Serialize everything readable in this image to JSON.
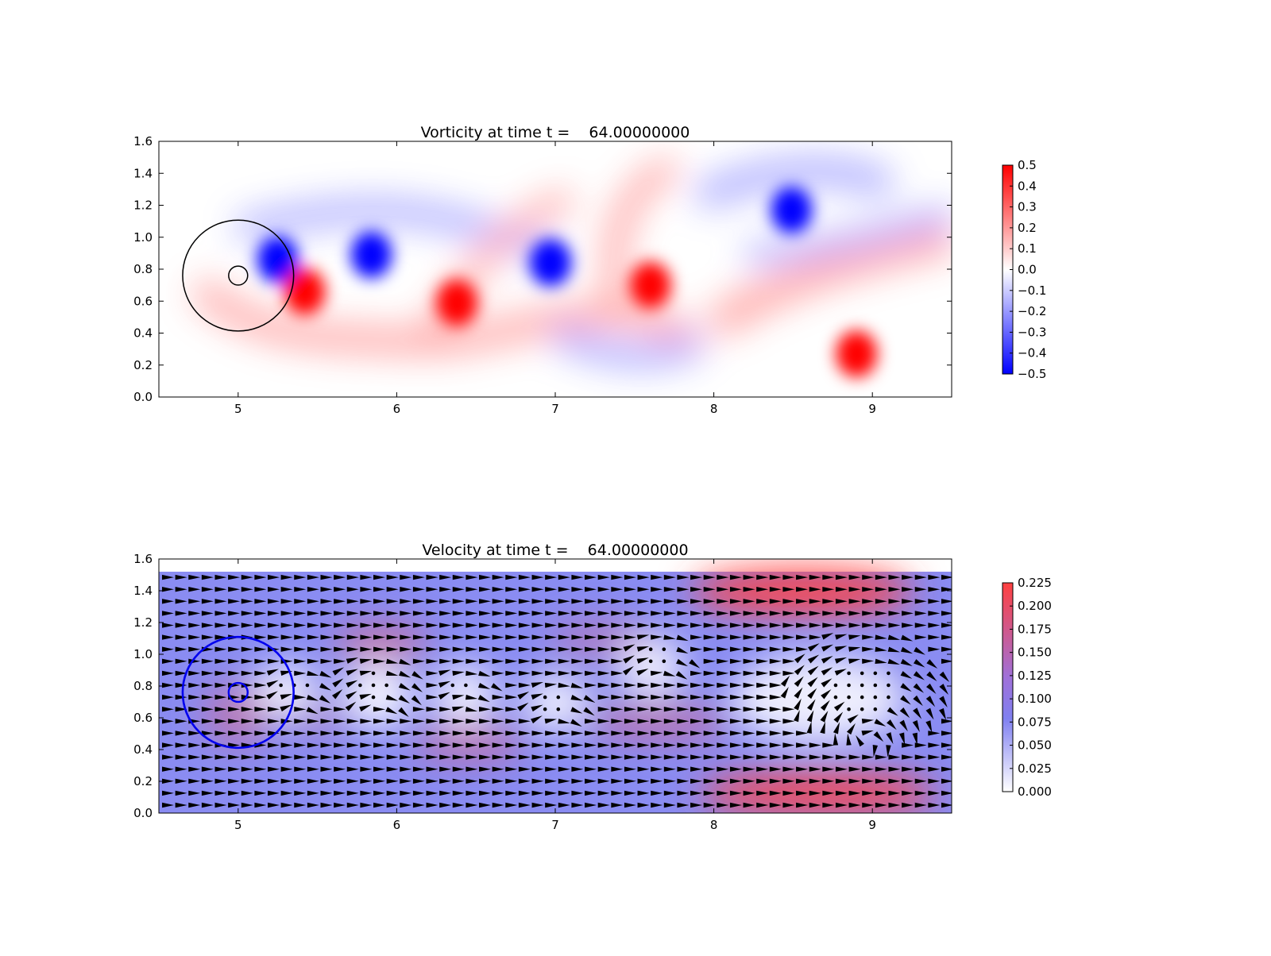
{
  "chart_data": [
    {
      "type": "heatmap",
      "title": "Vorticity at time t =    64.00000000",
      "xlabel": "",
      "ylabel": "",
      "xlim": [
        4.5,
        9.5
      ],
      "ylim": [
        0.0,
        1.6
      ],
      "xticks": [
        "5",
        "6",
        "7",
        "8",
        "9"
      ],
      "yticks": [
        "0.0",
        "0.2",
        "0.4",
        "0.6",
        "0.8",
        "1.0",
        "1.2",
        "1.4",
        "1.6"
      ],
      "colormap": "bwr",
      "colors": {
        "negative": "#0000ff",
        "zero": "#ffffff",
        "positive": "#ff0000"
      },
      "vlim": [
        -0.5,
        0.5
      ],
      "colorbar_ticks": [
        "0.5",
        "0.4",
        "0.3",
        "0.2",
        "0.1",
        "0.0",
        "−0.1",
        "−0.2",
        "−0.3",
        "−0.4",
        "−0.5"
      ],
      "grid": false,
      "vortices": [
        {
          "x": 5.25,
          "y": 0.86,
          "sign": "negative",
          "strength": 0.5
        },
        {
          "x": 5.42,
          "y": 0.66,
          "sign": "positive",
          "strength": 0.5
        },
        {
          "x": 5.84,
          "y": 0.89,
          "sign": "negative",
          "strength": 0.5
        },
        {
          "x": 6.38,
          "y": 0.59,
          "sign": "positive",
          "strength": 0.5
        },
        {
          "x": 6.97,
          "y": 0.84,
          "sign": "negative",
          "strength": 0.5
        },
        {
          "x": 7.6,
          "y": 0.7,
          "sign": "positive",
          "strength": 0.5
        },
        {
          "x": 8.49,
          "y": 1.17,
          "sign": "negative",
          "strength": 0.5
        },
        {
          "x": 8.9,
          "y": 0.27,
          "sign": "positive",
          "strength": 0.5
        }
      ],
      "overlays": {
        "outer_circle": {
          "cx": 5.0,
          "cy": 0.76,
          "r": 0.35,
          "color": "#000000"
        },
        "inner_circle": {
          "cx": 5.0,
          "cy": 0.76,
          "r": 0.06,
          "color": "#000000"
        }
      }
    },
    {
      "type": "heatmap",
      "subtype": "quiver",
      "title": "Velocity at time t =    64.00000000",
      "xlabel": "",
      "ylabel": "",
      "xlim": [
        4.5,
        9.5
      ],
      "ylim": [
        0.0,
        1.6
      ],
      "xticks": [
        "5",
        "6",
        "7",
        "8",
        "9"
      ],
      "yticks": [
        "0.0",
        "0.2",
        "0.4",
        "0.6",
        "0.8",
        "1.0",
        "1.2",
        "1.4",
        "1.6"
      ],
      "colors": {
        "low": "#ffffff",
        "mid": "#8080f0",
        "high": "#ff4040",
        "arrows": "#000000"
      },
      "vlim": [
        0.0,
        0.225
      ],
      "colorbar_ticks": [
        "0.225",
        "0.200",
        "0.175",
        "0.150",
        "0.125",
        "0.100",
        "0.075",
        "0.050",
        "0.025",
        "0.000"
      ],
      "field_ylim": [
        0.0,
        1.52
      ],
      "grid": false,
      "overlays": {
        "outer_circle": {
          "cx": 5.0,
          "cy": 0.76,
          "r": 0.35,
          "color": "#0000ee"
        },
        "inner_circle": {
          "cx": 5.0,
          "cy": 0.76,
          "r": 0.06,
          "color": "#0000ee"
        }
      }
    }
  ]
}
